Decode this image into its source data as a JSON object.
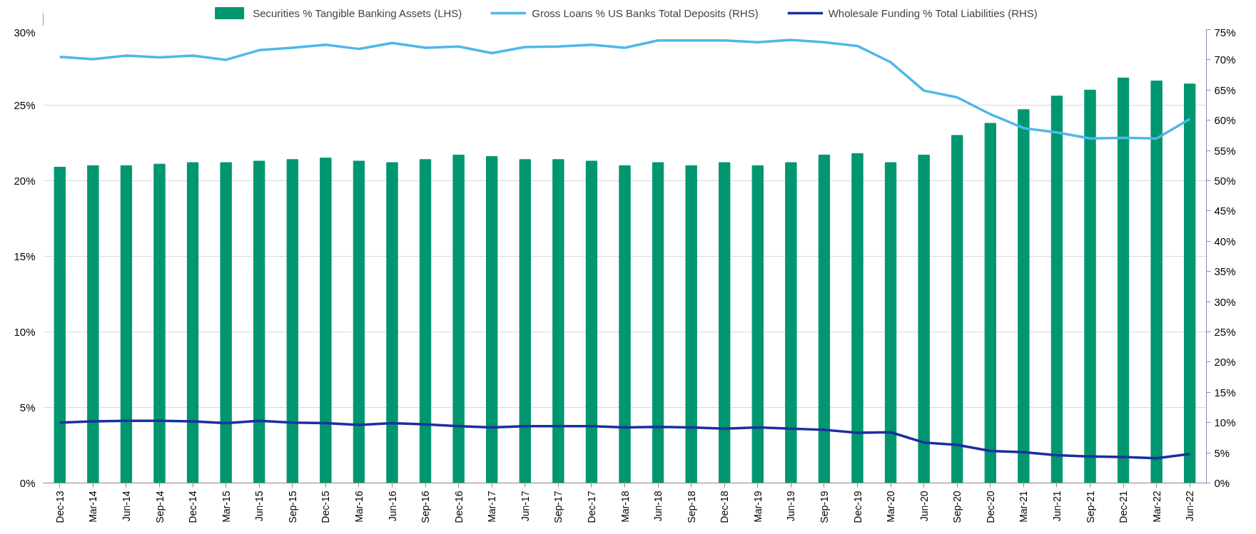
{
  "chart_data": {
    "type": "bar",
    "categories": [
      "Dec-13",
      "Mar-14",
      "Jun-14",
      "Sep-14",
      "Dec-14",
      "Mar-15",
      "Jun-15",
      "Sep-15",
      "Dec-15",
      "Mar-16",
      "Jun-16",
      "Sep-16",
      "Dec-16",
      "Mar-17",
      "Jun-17",
      "Sep-17",
      "Dec-17",
      "Mar-18",
      "Jun-18",
      "Sep-18",
      "Dec-18",
      "Mar-19",
      "Jun-19",
      "Sep-19",
      "Dec-19",
      "Mar-20",
      "Jun-20",
      "Sep-20",
      "Dec-20",
      "Mar-21",
      "Jun-21",
      "Sep-21",
      "Dec-21",
      "Mar-22",
      "Jun-22"
    ],
    "series": [
      {
        "name": "Securities % Tangible Banking Assets (LHS)",
        "color": "#009670",
        "values": [
          20.9,
          21.0,
          21.0,
          21.1,
          21.2,
          21.2,
          21.3,
          21.4,
          21.5,
          21.3,
          21.2,
          21.4,
          21.7,
          21.6,
          21.4,
          21.4,
          21.3,
          21.0,
          21.2,
          21.0,
          21.2,
          21.0,
          21.2,
          21.7,
          21.8,
          21.2,
          21.7,
          23.0,
          23.8,
          24.7,
          25.6,
          26.0,
          26.8,
          26.6,
          26.4
        ]
      },
      {
        "name": "Gross Loans % US Banks Total Deposits (RHS)",
        "type": "line",
        "axis": "y2",
        "color": "#4db8e8",
        "values": [
          70.5,
          70.1,
          70.7,
          70.4,
          70.7,
          70.0,
          71.6,
          72.0,
          72.5,
          71.8,
          72.8,
          72.0,
          72.2,
          71.1,
          72.1,
          72.2,
          72.5,
          72.0,
          73.2,
          73.2,
          73.2,
          72.9,
          73.3,
          72.9,
          72.3,
          69.6,
          64.9,
          63.8,
          61.0,
          58.7,
          58.0,
          57.0,
          57.1,
          57.0,
          60.2
        ]
      },
      {
        "name": "Wholesale Funding % Total Liabilities (RHS)",
        "type": "line",
        "axis": "y2",
        "color": "#1a2fa0",
        "values": [
          10.0,
          10.2,
          10.3,
          10.3,
          10.2,
          9.9,
          10.3,
          10.0,
          9.9,
          9.6,
          9.9,
          9.7,
          9.4,
          9.2,
          9.4,
          9.4,
          9.4,
          9.2,
          9.3,
          9.2,
          9.0,
          9.2,
          9.0,
          8.8,
          8.3,
          8.4,
          6.7,
          6.3,
          5.3,
          5.1,
          4.6,
          4.4,
          4.3,
          4.1,
          4.8
        ]
      }
    ],
    "ylim": [
      0,
      30
    ],
    "yticks": [
      {
        "value": 0,
        "label": "0%"
      },
      {
        "value": 5,
        "label": "5%"
      },
      {
        "value": 10,
        "label": "10%"
      },
      {
        "value": 15,
        "label": "15%"
      },
      {
        "value": 20,
        "label": "20%"
      },
      {
        "value": 25,
        "label": "25%"
      },
      {
        "value": 30,
        "label": "30%"
      }
    ],
    "y2lim": [
      0,
      75
    ],
    "y2ticks": [
      {
        "value": 0,
        "label": "0%"
      },
      {
        "value": 5,
        "label": "5%"
      },
      {
        "value": 10,
        "label": "10%"
      },
      {
        "value": 15,
        "label": "15%"
      },
      {
        "value": 20,
        "label": "20%"
      },
      {
        "value": 25,
        "label": "25%"
      },
      {
        "value": 30,
        "label": "30%"
      },
      {
        "value": 35,
        "label": "35%"
      },
      {
        "value": 40,
        "label": "40%"
      },
      {
        "value": 45,
        "label": "45%"
      },
      {
        "value": 50,
        "label": "50%"
      },
      {
        "value": 55,
        "label": "55%"
      },
      {
        "value": 60,
        "label": "60%"
      },
      {
        "value": 65,
        "label": "65%"
      },
      {
        "value": 70,
        "label": "70%"
      },
      {
        "value": 75,
        "label": "75%"
      }
    ],
    "grid": "y",
    "legend": "top",
    "line_style": "solid",
    "marker": "none"
  }
}
